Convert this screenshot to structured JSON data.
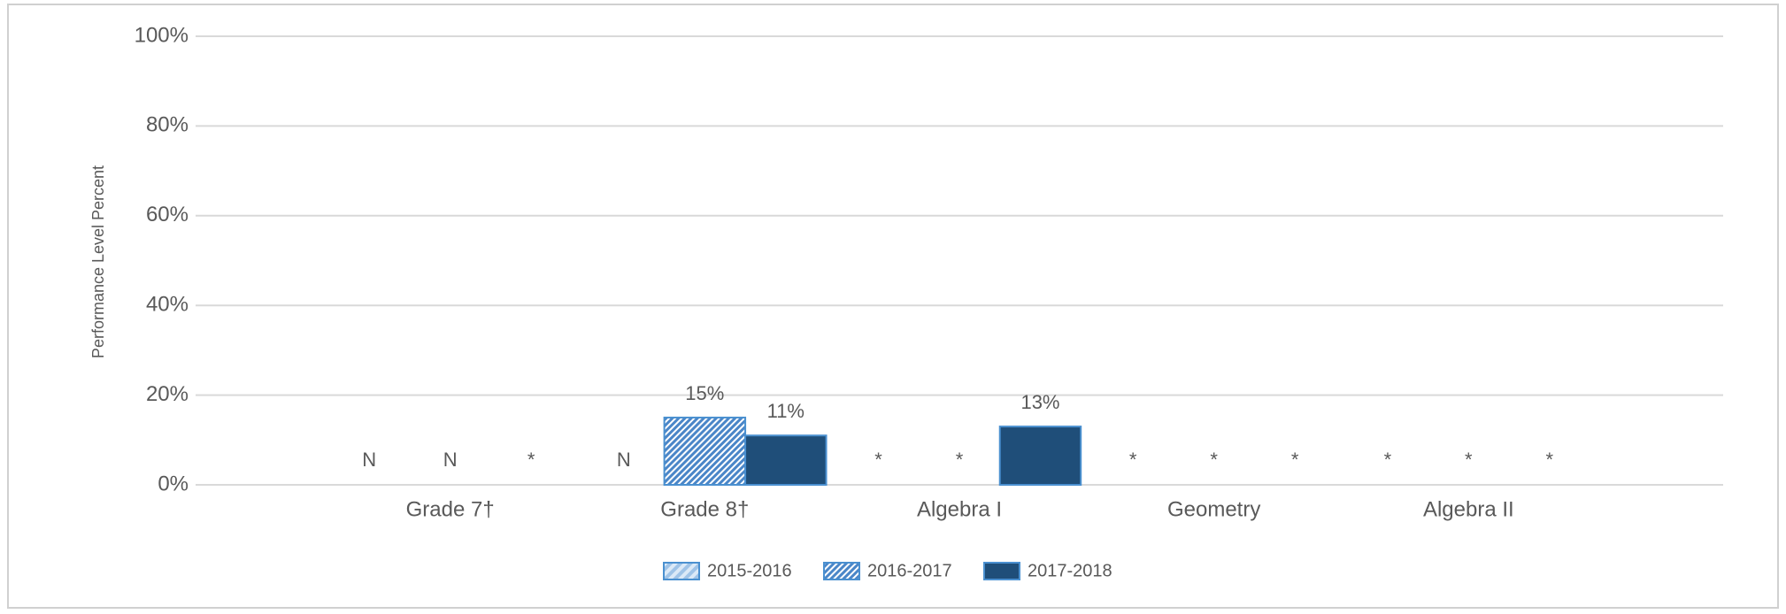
{
  "chart_data": {
    "type": "bar",
    "y_label": "Performance Level Percent",
    "categories": [
      "Grade 7†",
      "Grade 8†",
      "Algebra I",
      "Geometry",
      "Algebra II"
    ],
    "series": [
      {
        "name": "2015-2016",
        "color": "#9fc3e7",
        "values": [
          null,
          null,
          null,
          null,
          null
        ],
        "value_labels": [
          "N",
          "N",
          "*",
          "*",
          "*"
        ]
      },
      {
        "name": "2016-2017",
        "color": "#4a86c8",
        "values": [
          null,
          15,
          null,
          null,
          null
        ],
        "value_labels": [
          "N",
          "15%",
          "*",
          "*",
          "*"
        ]
      },
      {
        "name": "2017-2018",
        "color": "#1f4e79",
        "values": [
          null,
          11,
          13,
          null,
          null
        ],
        "value_labels": [
          "*",
          "11%",
          "13%",
          "*",
          "*"
        ]
      }
    ],
    "ylim": [
      0,
      100
    ],
    "yticks": [
      {
        "value": 0,
        "label": "0%"
      },
      {
        "value": 20,
        "label": "20%"
      },
      {
        "value": 40,
        "label": "40%"
      },
      {
        "value": 60,
        "label": "60%"
      },
      {
        "value": 80,
        "label": "80%"
      },
      {
        "value": 100,
        "label": "100%"
      }
    ],
    "grid": true
  }
}
